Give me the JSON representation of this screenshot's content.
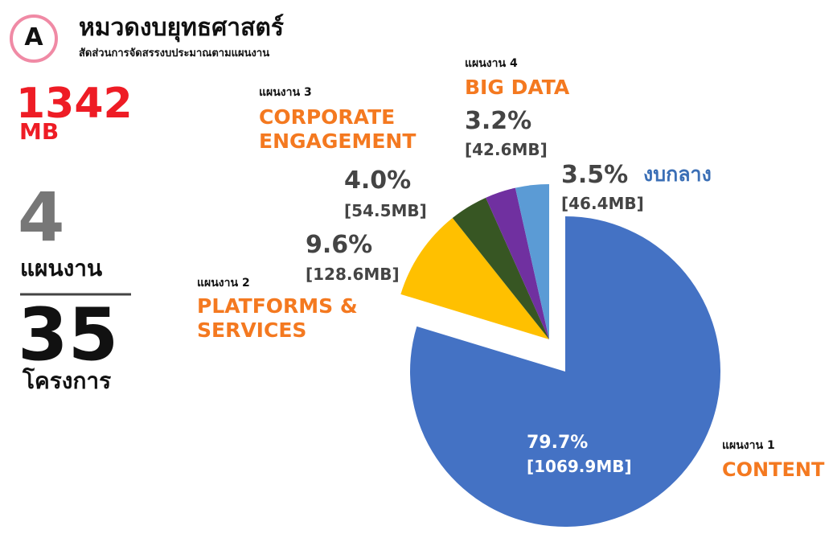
{
  "header": {
    "badge": "A",
    "title": "หมวดงบยุทธศาสตร์",
    "subtitle": "สัดส่วนการจัดสรรงบประมาณตามแผนงาน"
  },
  "summary": {
    "total": 1342,
    "unit": "MB",
    "plans": 4,
    "plans_label": "แผนงาน",
    "projects": 35,
    "projects_label": "โครงการ"
  },
  "chart_data": {
    "type": "pie",
    "slices": [
      {
        "plan": "แผนงาน 1",
        "name_lines": [
          "CONTENT"
        ],
        "value": 79.7,
        "value_label": "79.7%",
        "mb": 1069.9,
        "mb_label": "[1069.9MB]",
        "color": "#4472c4"
      },
      {
        "plan": "แผนงาน 2",
        "name_lines": [
          "PLATFORMS &",
          "SERVICES"
        ],
        "value": 9.6,
        "value_label": "9.6%",
        "mb": 128.6,
        "mb_label": "[128.6MB]",
        "color": "#ffc000"
      },
      {
        "plan": "แผนงาน 3",
        "name_lines": [
          "CORPORATE",
          "ENGAGEMENT"
        ],
        "value": 4.0,
        "value_label": "4.0%",
        "mb": 54.5,
        "mb_label": "[54.5MB]",
        "color": "#375623"
      },
      {
        "plan": "แผนงาน 4",
        "name_lines": [
          "BIG DATA"
        ],
        "value": 3.2,
        "value_label": "3.2%",
        "mb": 42.6,
        "mb_label": "[42.6MB]",
        "color": "#7030a0"
      },
      {
        "name_lines": [
          "งบกลาง"
        ],
        "value": 3.5,
        "value_label": "3.5%",
        "mb": 46.4,
        "mb_label": "[46.4MB]",
        "color": "#5b9bd5"
      }
    ]
  }
}
